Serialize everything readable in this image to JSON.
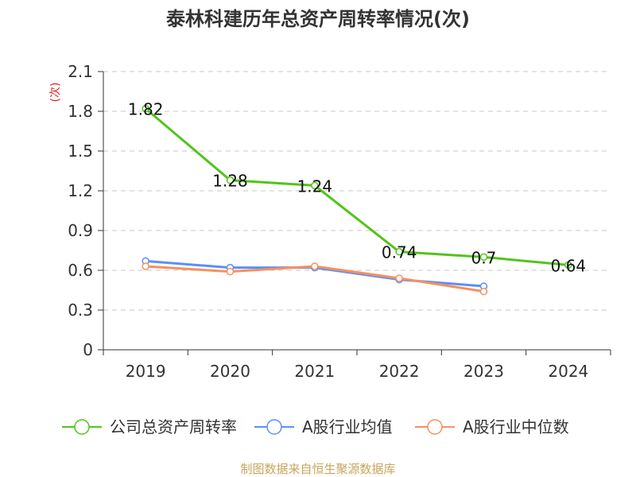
{
  "chart_data": {
    "type": "line",
    "title": "泰林科建历年总资产周转率情况(次)",
    "ylabel": "(次)",
    "ylim": [
      0,
      2.1
    ],
    "yticks": [
      "0",
      "0.3",
      "0.6",
      "0.9",
      "1.2",
      "1.5",
      "1.8",
      "2.1"
    ],
    "ytick_values": [
      0,
      0.3,
      0.6,
      0.9,
      1.2,
      1.5,
      1.8,
      2.1
    ],
    "categories": [
      "2019",
      "2020",
      "2021",
      "2022",
      "2023",
      "2024"
    ],
    "grid": true,
    "legend_position": "bottom",
    "series": [
      {
        "name": "公司总资产周转率",
        "color": "#52c41a",
        "values": [
          1.82,
          1.28,
          1.24,
          0.74,
          0.7,
          0.64
        ],
        "labels": [
          "1.82",
          "1.28",
          "1.24",
          "0.74",
          "0.7",
          "0.64"
        ]
      },
      {
        "name": "A股行业均值",
        "color": "#5b8ff9",
        "values": [
          0.67,
          0.62,
          0.62,
          0.53,
          0.48,
          null
        ]
      },
      {
        "name": "A股行业中位数",
        "color": "#f6905f",
        "values": [
          0.63,
          0.59,
          0.63,
          0.54,
          0.44,
          null
        ]
      }
    ]
  },
  "footer": {
    "source": "制图数据来自恒生聚源数据库",
    "color": "#c8a45a"
  }
}
